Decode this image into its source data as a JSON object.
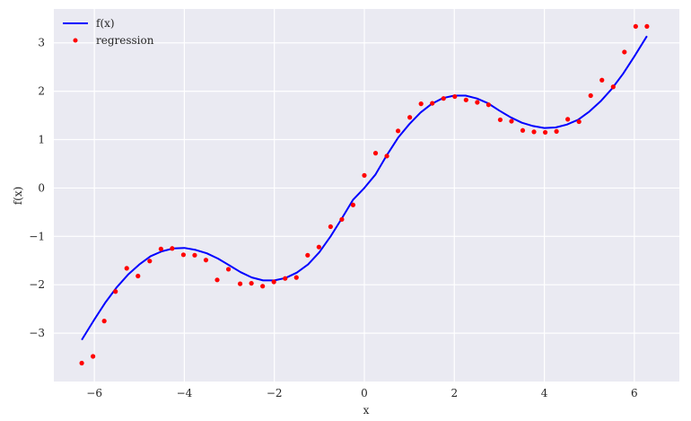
{
  "chart_data": {
    "type": "line",
    "xlabel": "x",
    "ylabel": "f(x)",
    "xlim": [
      -6.9,
      7.0
    ],
    "ylim": [
      -4.0,
      3.7
    ],
    "xticks": [
      -6,
      -4,
      -2,
      0,
      2,
      4,
      6
    ],
    "yticks": [
      -3,
      -2,
      -1,
      0,
      1,
      2,
      3
    ],
    "xtick_labels": [
      "−6",
      "−4",
      "−2",
      "0",
      "2",
      "4",
      "6"
    ],
    "ytick_labels": [
      "−3",
      "−2",
      "−1",
      "0",
      "1",
      "2",
      "3"
    ],
    "grid": true,
    "legend_position": "top-left",
    "series": [
      {
        "name": "f(x)",
        "kind": "line",
        "color": "#0000ff",
        "x": [
          -6.28,
          -6.0,
          -5.75,
          -5.5,
          -5.25,
          -5.0,
          -4.75,
          -4.5,
          -4.25,
          -4.0,
          -3.75,
          -3.5,
          -3.25,
          -3.0,
          -2.75,
          -2.5,
          -2.25,
          -2.0,
          -1.75,
          -1.5,
          -1.25,
          -1.0,
          -0.75,
          -0.5,
          -0.25,
          0.0,
          0.25,
          0.5,
          0.75,
          1.0,
          1.25,
          1.5,
          1.75,
          2.0,
          2.25,
          2.5,
          2.75,
          3.0,
          3.25,
          3.5,
          3.75,
          4.0,
          4.25,
          4.5,
          4.75,
          5.0,
          5.25,
          5.5,
          5.75,
          6.0,
          6.28
        ],
        "y": [
          -3.14,
          -2.72,
          -2.36,
          -2.05,
          -1.79,
          -1.58,
          -1.41,
          -1.31,
          -1.25,
          -1.24,
          -1.28,
          -1.35,
          -1.46,
          -1.6,
          -1.74,
          -1.85,
          -1.91,
          -1.91,
          -1.86,
          -1.75,
          -1.58,
          -1.33,
          -1.0,
          -0.63,
          -0.24,
          0.0,
          0.28,
          0.68,
          1.04,
          1.32,
          1.56,
          1.74,
          1.86,
          1.91,
          1.91,
          1.85,
          1.75,
          1.6,
          1.46,
          1.35,
          1.28,
          1.24,
          1.25,
          1.31,
          1.41,
          1.58,
          1.79,
          2.05,
          2.36,
          2.72,
          3.14
        ]
      },
      {
        "name": "regression",
        "kind": "scatter",
        "color": "#ff0000",
        "x": [
          -6.28,
          -6.03,
          -5.78,
          -5.53,
          -5.28,
          -5.03,
          -4.77,
          -4.52,
          -4.27,
          -4.02,
          -3.77,
          -3.52,
          -3.27,
          -3.02,
          -2.76,
          -2.51,
          -2.26,
          -2.01,
          -1.76,
          -1.51,
          -1.26,
          -1.01,
          -0.75,
          -0.5,
          -0.25,
          0.0,
          0.25,
          0.5,
          0.75,
          1.01,
          1.26,
          1.51,
          1.76,
          2.01,
          2.26,
          2.51,
          2.76,
          3.02,
          3.27,
          3.52,
          3.77,
          4.02,
          4.27,
          4.52,
          4.77,
          5.03,
          5.28,
          5.53,
          5.78,
          6.03,
          6.28
        ],
        "y": [
          -3.62,
          -3.48,
          -2.75,
          -2.14,
          -1.66,
          -1.82,
          -1.51,
          -1.26,
          -1.25,
          -1.38,
          -1.39,
          -1.49,
          -1.9,
          -1.68,
          -1.98,
          -1.97,
          -2.03,
          -1.94,
          -1.87,
          -1.85,
          -1.39,
          -1.22,
          -0.8,
          -0.65,
          -0.35,
          0.26,
          0.72,
          0.66,
          1.18,
          1.46,
          1.74,
          1.75,
          1.85,
          1.89,
          1.82,
          1.77,
          1.72,
          1.41,
          1.38,
          1.19,
          1.16,
          1.15,
          1.17,
          1.42,
          1.37,
          1.91,
          2.23,
          2.09,
          2.81,
          3.34,
          3.34
        ]
      }
    ]
  }
}
